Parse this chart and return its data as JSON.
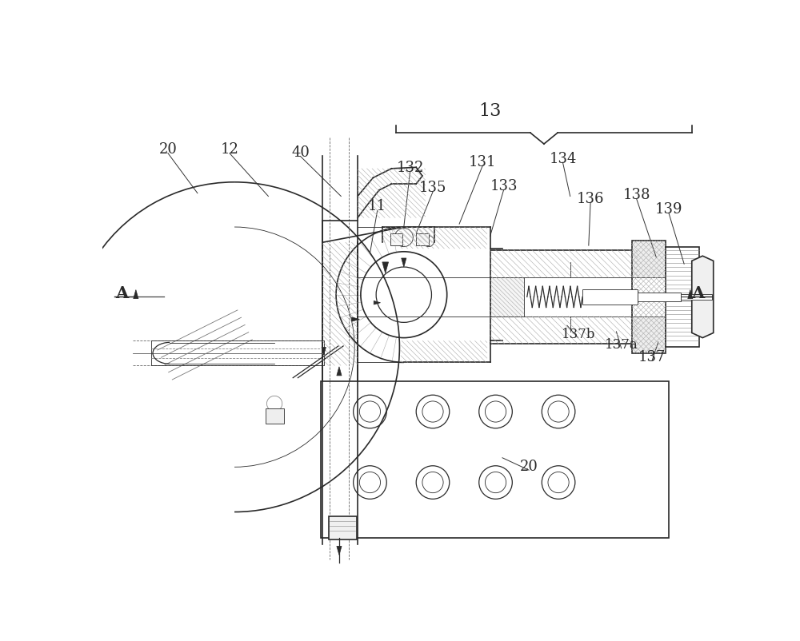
{
  "bg_color": "#ffffff",
  "line_color": "#2a2a2a",
  "hatch_color": "#3a3a3a",
  "lw_main": 1.2,
  "lw_thin": 0.6,
  "lw_medium": 0.9,
  "figsize": [
    10.0,
    8.03
  ],
  "labels": {
    "13": [
      630,
      55,
      16
    ],
    "131": [
      618,
      138,
      13
    ],
    "132": [
      500,
      148,
      13
    ],
    "133": [
      652,
      178,
      13
    ],
    "134": [
      748,
      133,
      13
    ],
    "135": [
      537,
      180,
      13
    ],
    "136": [
      793,
      198,
      13
    ],
    "138": [
      868,
      192,
      13
    ],
    "139": [
      920,
      215,
      13
    ],
    "137": [
      893,
      455,
      13
    ],
    "137a": [
      843,
      435,
      12
    ],
    "137b": [
      773,
      418,
      12
    ],
    "11": [
      447,
      210,
      13
    ],
    "12": [
      207,
      118,
      13
    ],
    "20t": [
      107,
      118,
      13
    ],
    "20b": [
      693,
      633,
      13
    ],
    "40": [
      322,
      123,
      13
    ]
  },
  "leader_lines": [
    [
      618,
      145,
      580,
      240
    ],
    [
      500,
      156,
      490,
      245
    ],
    [
      652,
      185,
      630,
      260
    ],
    [
      748,
      140,
      760,
      195
    ],
    [
      537,
      188,
      510,
      255
    ],
    [
      793,
      205,
      790,
      275
    ],
    [
      868,
      200,
      900,
      295
    ],
    [
      920,
      222,
      945,
      305
    ],
    [
      773,
      425,
      755,
      405
    ],
    [
      843,
      442,
      835,
      415
    ],
    [
      893,
      462,
      903,
      432
    ],
    [
      447,
      218,
      435,
      288
    ],
    [
      207,
      125,
      270,
      195
    ],
    [
      107,
      125,
      155,
      190
    ],
    [
      693,
      640,
      650,
      620
    ],
    [
      322,
      130,
      388,
      195
    ]
  ]
}
